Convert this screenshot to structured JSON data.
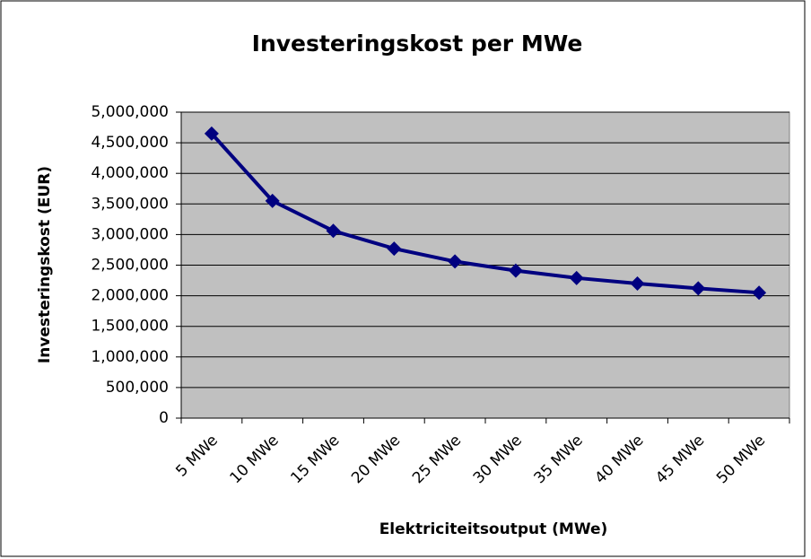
{
  "chart_data": {
    "type": "line",
    "title": "Investeringskost per MWe",
    "x_label": "Elektriciteitsoutput (MWe)",
    "y_label": "Investeringskost (EUR)",
    "categories": [
      "5 MWe",
      "10 MWe",
      "15 MWe",
      "20 MWe",
      "25 MWe",
      "30 MWe",
      "35 MWe",
      "40 MWe",
      "45 MWe",
      "50 MWe"
    ],
    "series": [
      {
        "name": "Investeringskost",
        "color": "#000080",
        "values": [
          4650000,
          3550000,
          3060000,
          2770000,
          2560000,
          2410000,
          2290000,
          2200000,
          2120000,
          2050000
        ]
      }
    ],
    "ylim": [
      0,
      5000000
    ],
    "yticks": [
      0,
      {
        "value": 500000,
        "label": "500,000"
      },
      {
        "value": 1000000,
        "label": "1,000,000"
      },
      {
        "value": 1500000,
        "label": "1,500,000"
      },
      {
        "value": 2000000,
        "label": "2,000,000"
      },
      {
        "value": 2500000,
        "label": "2,500,000"
      },
      {
        "value": 3000000,
        "label": "3,000,000"
      },
      {
        "value": 3500000,
        "label": "3,500,000"
      },
      {
        "value": 4000000,
        "label": "4,000,000"
      },
      {
        "value": 4500000,
        "label": "4,500,000"
      },
      {
        "value": 5000000,
        "label": "5,000,000"
      }
    ],
    "grid": true,
    "plot_background": "#c0c0c0"
  }
}
